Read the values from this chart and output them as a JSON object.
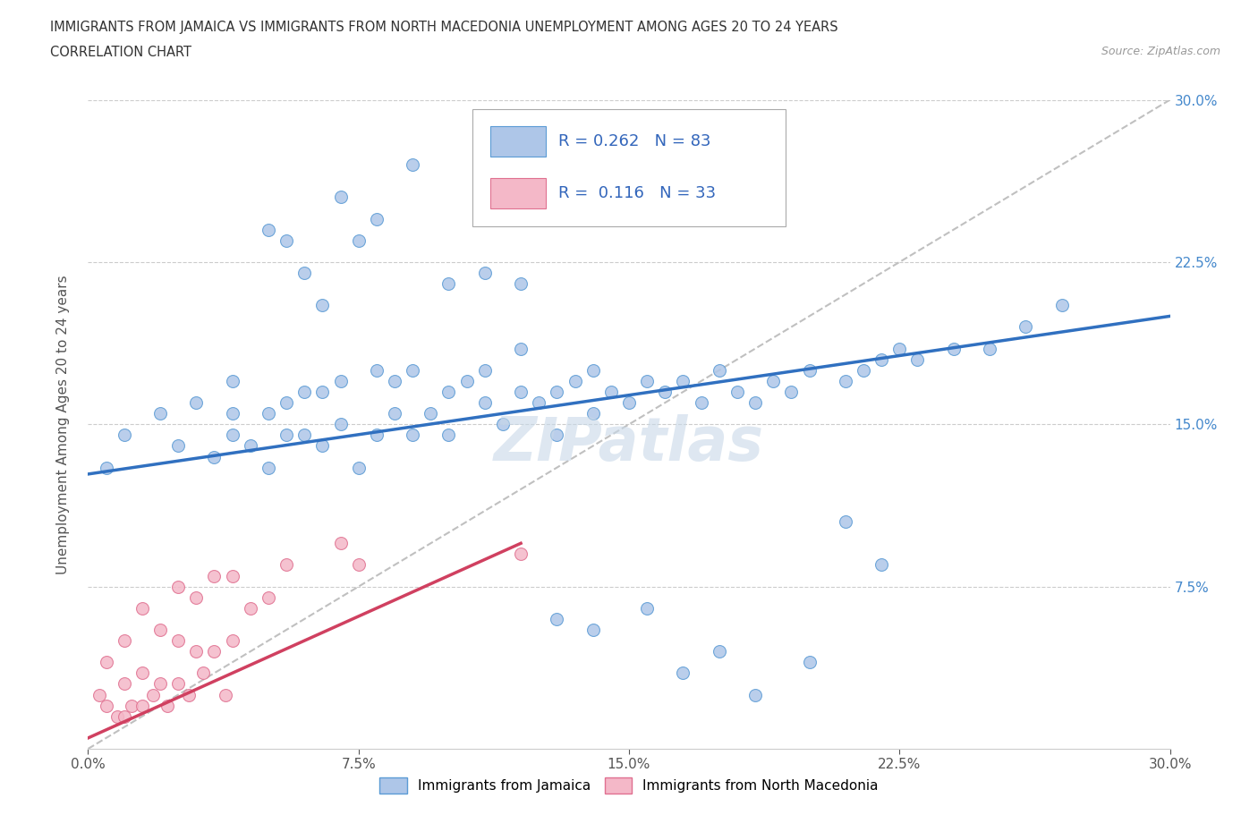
{
  "title_line1": "IMMIGRANTS FROM JAMAICA VS IMMIGRANTS FROM NORTH MACEDONIA UNEMPLOYMENT AMONG AGES 20 TO 24 YEARS",
  "title_line2": "CORRELATION CHART",
  "source": "Source: ZipAtlas.com",
  "ylabel": "Unemployment Among Ages 20 to 24 years",
  "xlim": [
    0.0,
    0.3
  ],
  "ylim": [
    0.0,
    0.3
  ],
  "xticks": [
    0.0,
    0.075,
    0.15,
    0.225,
    0.3
  ],
  "xtick_labels": [
    "0.0%",
    "7.5%",
    "15.0%",
    "22.5%",
    "30.0%"
  ],
  "ytick_labels": [
    "",
    "7.5%",
    "15.0%",
    "22.5%",
    "30.0%"
  ],
  "yticks": [
    0.0,
    0.075,
    0.15,
    0.225,
    0.3
  ],
  "jamaica_color": "#aec6e8",
  "macedonia_color": "#f4b8c8",
  "jamaica_edge": "#5b9bd5",
  "macedonia_edge": "#e07090",
  "line_jamaica_color": "#3070c0",
  "line_macedonia_color": "#d04060",
  "line_grey_color": "#c0c0c0",
  "R_jamaica": 0.262,
  "N_jamaica": 83,
  "R_macedonia": 0.116,
  "N_macedonia": 33,
  "watermark": "ZIPatlas",
  "jamaica_x": [
    0.005,
    0.01,
    0.02,
    0.025,
    0.03,
    0.035,
    0.04,
    0.04,
    0.04,
    0.045,
    0.05,
    0.05,
    0.055,
    0.055,
    0.06,
    0.06,
    0.065,
    0.065,
    0.07,
    0.07,
    0.075,
    0.08,
    0.08,
    0.085,
    0.085,
    0.09,
    0.09,
    0.095,
    0.1,
    0.1,
    0.105,
    0.11,
    0.11,
    0.115,
    0.12,
    0.12,
    0.125,
    0.13,
    0.13,
    0.135,
    0.14,
    0.14,
    0.145,
    0.15,
    0.155,
    0.16,
    0.165,
    0.17,
    0.175,
    0.18,
    0.185,
    0.19,
    0.195,
    0.2,
    0.21,
    0.215,
    0.22,
    0.225,
    0.23,
    0.24,
    0.25,
    0.27,
    0.05,
    0.055,
    0.06,
    0.065,
    0.07,
    0.075,
    0.08,
    0.09,
    0.1,
    0.11,
    0.12,
    0.13,
    0.14,
    0.155,
    0.165,
    0.175,
    0.185,
    0.2,
    0.21,
    0.22,
    0.26
  ],
  "jamaica_y": [
    0.13,
    0.145,
    0.155,
    0.14,
    0.16,
    0.135,
    0.145,
    0.155,
    0.17,
    0.14,
    0.13,
    0.155,
    0.145,
    0.16,
    0.145,
    0.165,
    0.14,
    0.165,
    0.15,
    0.17,
    0.13,
    0.145,
    0.175,
    0.155,
    0.17,
    0.145,
    0.175,
    0.155,
    0.145,
    0.165,
    0.17,
    0.16,
    0.175,
    0.15,
    0.165,
    0.185,
    0.16,
    0.145,
    0.165,
    0.17,
    0.155,
    0.175,
    0.165,
    0.16,
    0.17,
    0.165,
    0.17,
    0.16,
    0.175,
    0.165,
    0.16,
    0.17,
    0.165,
    0.175,
    0.17,
    0.175,
    0.18,
    0.185,
    0.18,
    0.185,
    0.185,
    0.205,
    0.24,
    0.235,
    0.22,
    0.205,
    0.255,
    0.235,
    0.245,
    0.27,
    0.215,
    0.22,
    0.215,
    0.06,
    0.055,
    0.065,
    0.035,
    0.045,
    0.025,
    0.04,
    0.105,
    0.085,
    0.195
  ],
  "macedonia_x": [
    0.003,
    0.005,
    0.005,
    0.008,
    0.01,
    0.01,
    0.01,
    0.012,
    0.015,
    0.015,
    0.015,
    0.018,
    0.02,
    0.02,
    0.022,
    0.025,
    0.025,
    0.025,
    0.028,
    0.03,
    0.03,
    0.032,
    0.035,
    0.035,
    0.038,
    0.04,
    0.04,
    0.045,
    0.05,
    0.055,
    0.07,
    0.075,
    0.12
  ],
  "macedonia_y": [
    0.025,
    0.02,
    0.04,
    0.015,
    0.015,
    0.03,
    0.05,
    0.02,
    0.02,
    0.035,
    0.065,
    0.025,
    0.03,
    0.055,
    0.02,
    0.03,
    0.05,
    0.075,
    0.025,
    0.045,
    0.07,
    0.035,
    0.045,
    0.08,
    0.025,
    0.05,
    0.08,
    0.065,
    0.07,
    0.085,
    0.095,
    0.085,
    0.09
  ],
  "jamaica_line_x0": 0.0,
  "jamaica_line_x1": 0.3,
  "jamaica_line_y0": 0.127,
  "jamaica_line_y1": 0.2,
  "macedonia_line_x0": 0.0,
  "macedonia_line_x1": 0.12,
  "macedonia_line_y0": 0.005,
  "macedonia_line_y1": 0.095,
  "grey_line_x0": 0.0,
  "grey_line_x1": 0.3,
  "grey_line_y0": 0.0,
  "grey_line_y1": 0.3
}
